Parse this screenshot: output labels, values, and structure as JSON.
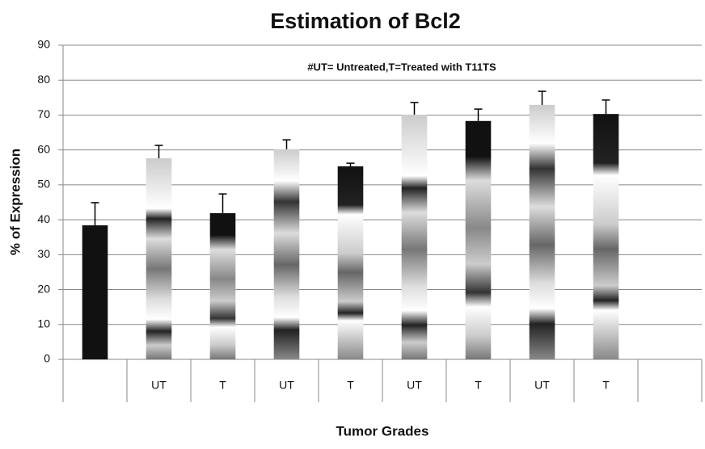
{
  "chart_data": {
    "type": "bar",
    "title": "Estimation of Bcl2",
    "annotation": "#UT= Untreated,T=Treated with T11TS",
    "xlabel": "Tumor Grades",
    "ylabel": "% of Expression",
    "categories": [
      null,
      "UT",
      "T",
      "UT",
      "T",
      "UT",
      "T",
      "UT",
      "T",
      null
    ],
    "values": [
      38.4,
      57.6,
      41.9,
      60.2,
      55.3,
      70.1,
      68.3,
      72.9,
      70.3,
      null
    ],
    "errors": [
      6.5,
      3.7,
      5.5,
      2.7,
      0.9,
      3.5,
      3.4,
      3.9,
      4.0,
      null
    ],
    "color": "#111111",
    "ylim": [
      0,
      90
    ],
    "yticks": [
      0,
      10,
      20,
      30,
      40,
      50,
      60,
      70,
      80,
      90
    ],
    "grid": true
  }
}
